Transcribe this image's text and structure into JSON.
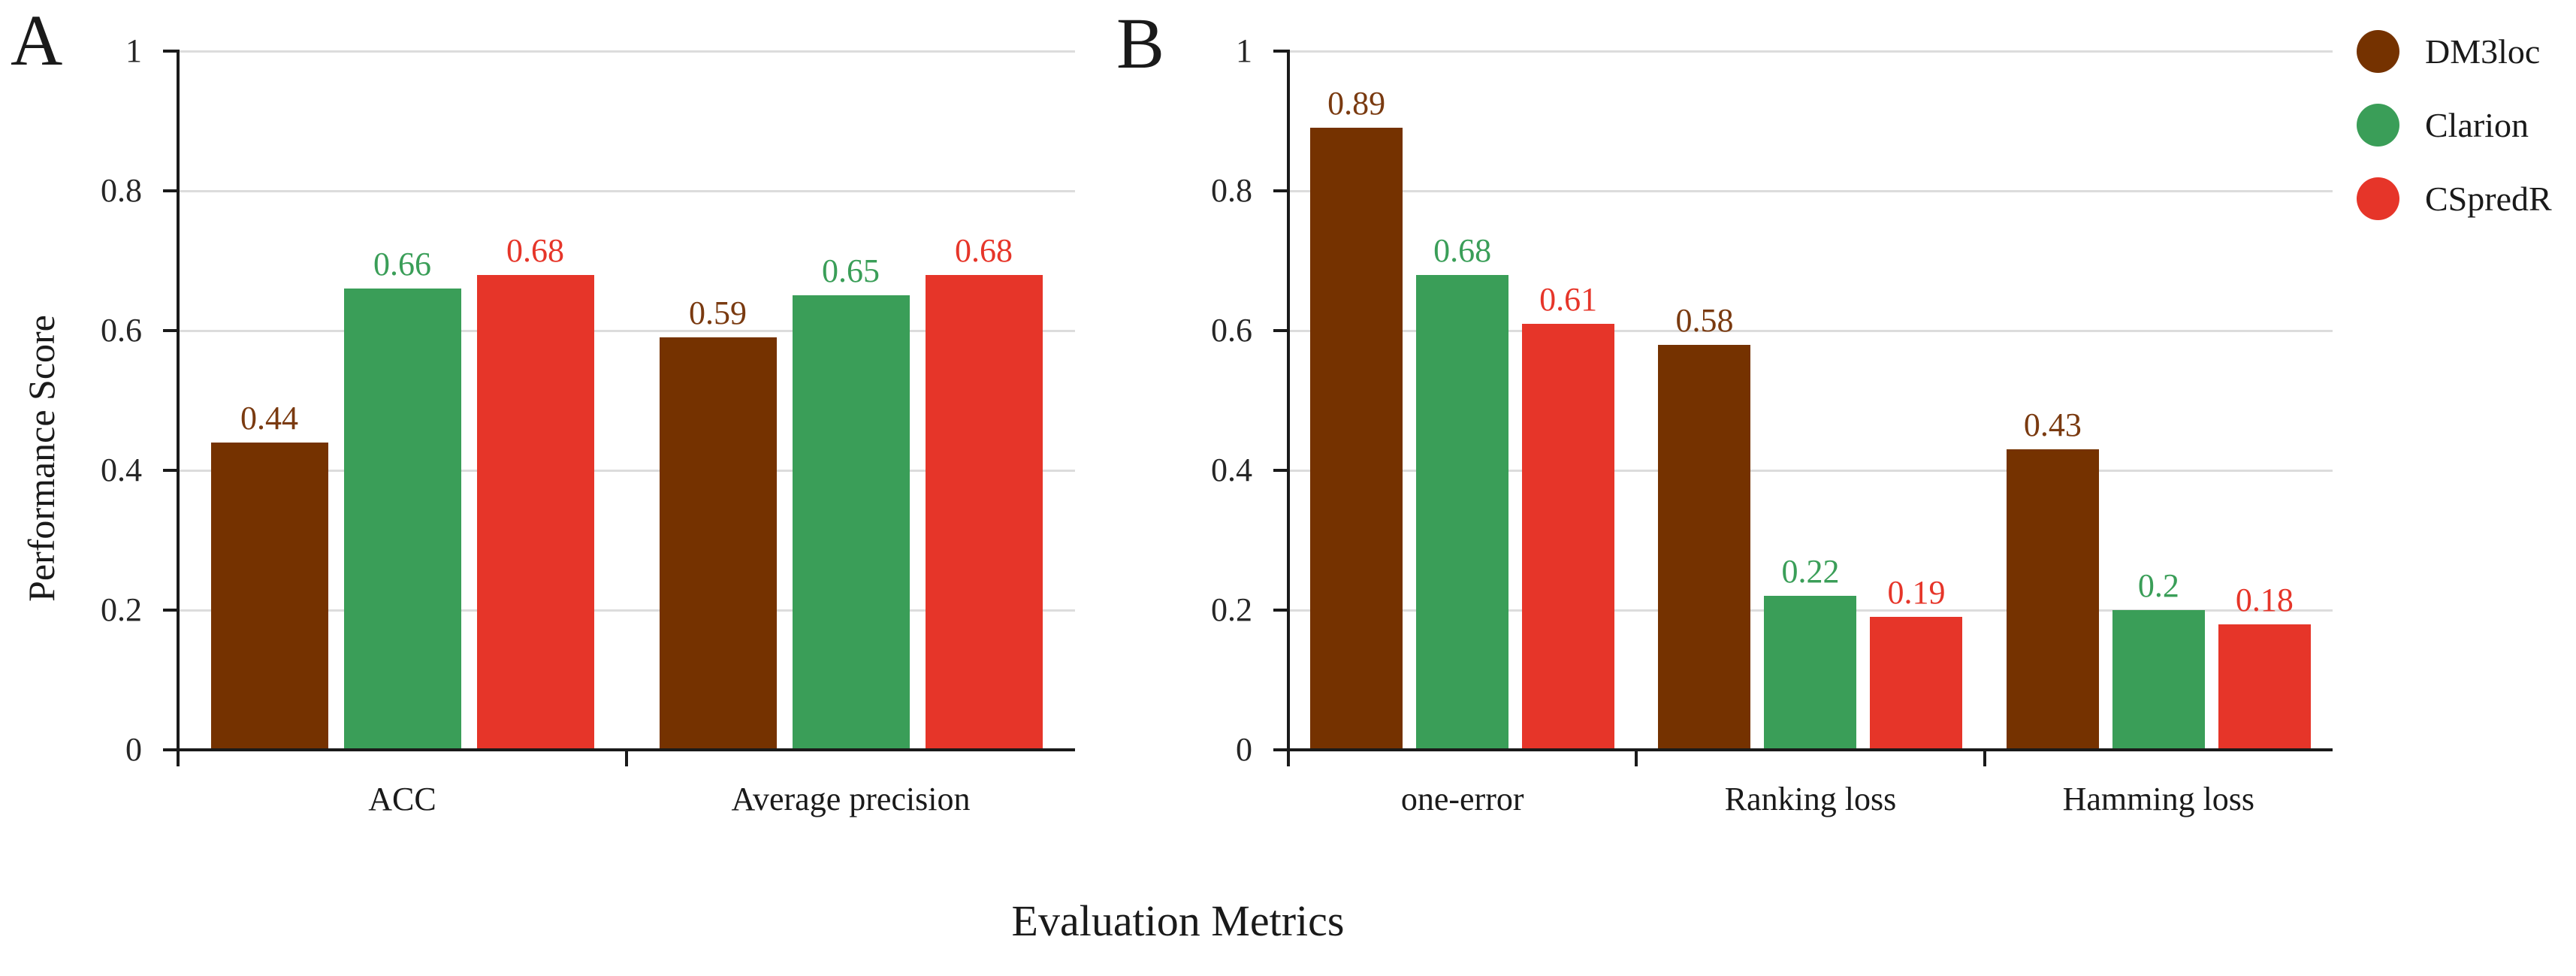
{
  "figure": {
    "ylabel": "Performance Score",
    "xlabel": "Evaluation Metrics"
  },
  "legend": {
    "items": [
      {
        "label": "DM3loc",
        "color": "#753200"
      },
      {
        "label": "Clarion",
        "color": "#3a9e58"
      },
      {
        "label": "CSpredR",
        "color": "#e63529"
      }
    ]
  },
  "chart_data": [
    {
      "type": "bar",
      "panel": "A",
      "title": "",
      "xlabel": "Evaluation Metrics",
      "ylabel": "Performance Score",
      "ylim": [
        0,
        1
      ],
      "yticks": [
        "0",
        "0.2",
        "0.4",
        "0.6",
        "0.8",
        "1"
      ],
      "grid": true,
      "categories": [
        "ACC",
        "Average precision"
      ],
      "series": [
        {
          "name": "DM3loc",
          "color": "#753200",
          "label_color": "#7a3a10",
          "values": [
            0.44,
            0.59
          ]
        },
        {
          "name": "Clarion",
          "color": "#3a9e58",
          "label_color": "#3a9e58",
          "values": [
            0.66,
            0.65
          ]
        },
        {
          "name": "CSpredR",
          "color": "#e63529",
          "label_color": "#e63529",
          "values": [
            0.68,
            0.68
          ]
        }
      ],
      "value_labels": [
        [
          "0.44",
          "0.59"
        ],
        [
          "0.66",
          "0.65"
        ],
        [
          "0.68",
          "0.68"
        ]
      ]
    },
    {
      "type": "bar",
      "panel": "B",
      "title": "",
      "xlabel": "Evaluation Metrics",
      "ylabel": "Performance Score",
      "ylim": [
        0,
        1
      ],
      "yticks": [
        "0",
        "0.2",
        "0.4",
        "0.6",
        "0.8",
        "1"
      ],
      "grid": true,
      "categories": [
        "one-error",
        "Ranking loss",
        "Hamming loss"
      ],
      "series": [
        {
          "name": "DM3loc",
          "color": "#753200",
          "label_color": "#7a3a10",
          "values": [
            0.89,
            0.58,
            0.43
          ]
        },
        {
          "name": "Clarion",
          "color": "#3a9e58",
          "label_color": "#3a9e58",
          "values": [
            0.68,
            0.22,
            0.2
          ]
        },
        {
          "name": "CSpredR",
          "color": "#e63529",
          "label_color": "#e63529",
          "values": [
            0.61,
            0.19,
            0.18
          ]
        }
      ],
      "value_labels": [
        [
          "0.89",
          "0.58",
          "0.43"
        ],
        [
          "0.68",
          "0.22",
          "0.2"
        ],
        [
          "0.61",
          "0.19",
          "0.18"
        ]
      ],
      "legend_position": "top-right-outside"
    }
  ]
}
